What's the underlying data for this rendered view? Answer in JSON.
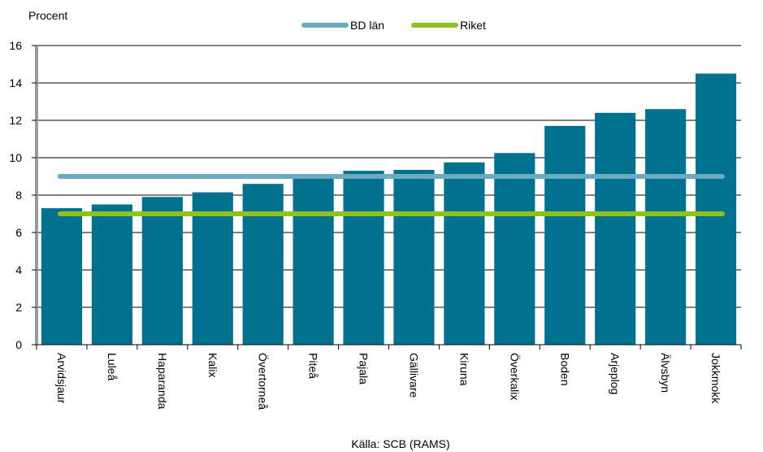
{
  "chart_data": {
    "type": "bar",
    "ylabel": "Procent",
    "source": "Källa: SCB (RAMS)",
    "ylim": [
      0,
      16
    ],
    "yticks": [
      0,
      2,
      4,
      6,
      8,
      10,
      12,
      14,
      16
    ],
    "grid": true,
    "legend_position": "top",
    "categories": [
      "Arvidsjaur",
      "Luleå",
      "Haparanda",
      "Kalix",
      "Övertorneå",
      "Piteå",
      "Pajala",
      "Gällivare",
      "Kiruna",
      "Överkalix",
      "Boden",
      "Arjeplog",
      "Älvsbyn",
      "Jokkmokk"
    ],
    "series": [
      {
        "values": [
          7.3,
          7.5,
          7.9,
          8.15,
          8.6,
          9.0,
          9.3,
          9.35,
          9.75,
          10.25,
          11.7,
          12.4,
          12.6,
          14.5
        ],
        "color": "#00718F"
      }
    ],
    "reference_lines": [
      {
        "name": "BD län",
        "value": 9.0,
        "color": "#6AABC2"
      },
      {
        "name": "Riket",
        "value": 7.0,
        "color": "#8DC21F"
      }
    ]
  }
}
